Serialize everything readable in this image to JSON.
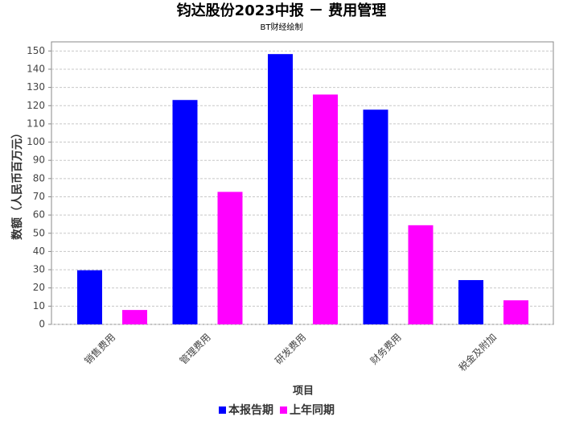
{
  "chart_data": {
    "type": "bar",
    "title": "钧达股份2023中报 － 费用管理",
    "subtitle": "BT财经绘制",
    "x_label": "项目",
    "y_label": "数额（人民币百万元）",
    "categories": [
      "销售费用",
      "管理费用",
      "研发费用",
      "财务费用",
      "税金及附加"
    ],
    "series": [
      {
        "name": "本报告期",
        "color": "#0000ff",
        "values": [
          29.7,
          123.1,
          148.3,
          117.8,
          24.3
        ]
      },
      {
        "name": "上年同期",
        "color": "#ff00ff",
        "values": [
          7.9,
          72.7,
          126.1,
          54.4,
          13.2
        ]
      }
    ],
    "ylim": [
      0,
      155
    ],
    "yticks": [
      0,
      10,
      20,
      30,
      40,
      50,
      60,
      70,
      80,
      90,
      100,
      110,
      120,
      130,
      140,
      150
    ],
    "grid": true,
    "legend": "bottom"
  }
}
